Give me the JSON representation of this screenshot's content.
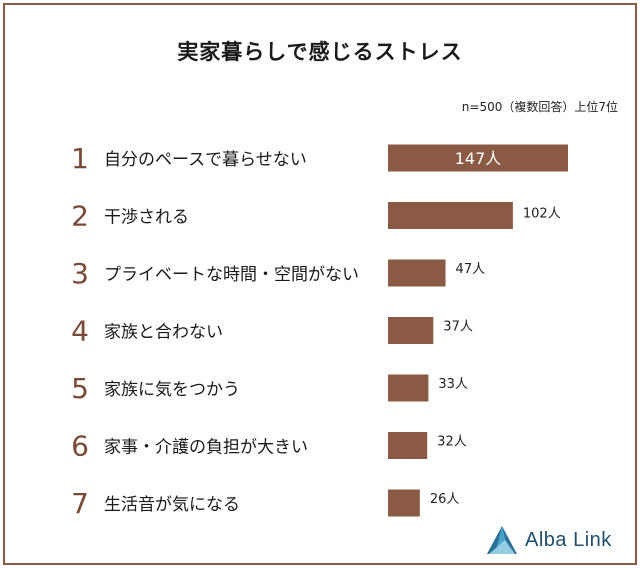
{
  "header": {
    "title": "実家暮らしで感じるストレス",
    "note": "n=500（複数回答）上位7位"
  },
  "chart_data": {
    "type": "bar",
    "orientation": "horizontal",
    "categories": [
      "自分のペースで暮らせない",
      "干渉される",
      "プライベートな時間・空間がない",
      "家族と合わない",
      "家族に気をつかう",
      "家事・介護の負担が大きい",
      "生活音が気になる"
    ],
    "ranks": [
      "1",
      "2",
      "3",
      "4",
      "5",
      "6",
      "7"
    ],
    "values": [
      147,
      102,
      47,
      37,
      33,
      32,
      26
    ],
    "value_labels": [
      "147人",
      "102人",
      "47人",
      "37人",
      "33人",
      "32人",
      "26人"
    ],
    "bar_color": "#8b5a44",
    "rank_color": "#7a4a36"
  },
  "logo": {
    "text": "Alba Link",
    "icon": "triangle-logo-icon"
  }
}
